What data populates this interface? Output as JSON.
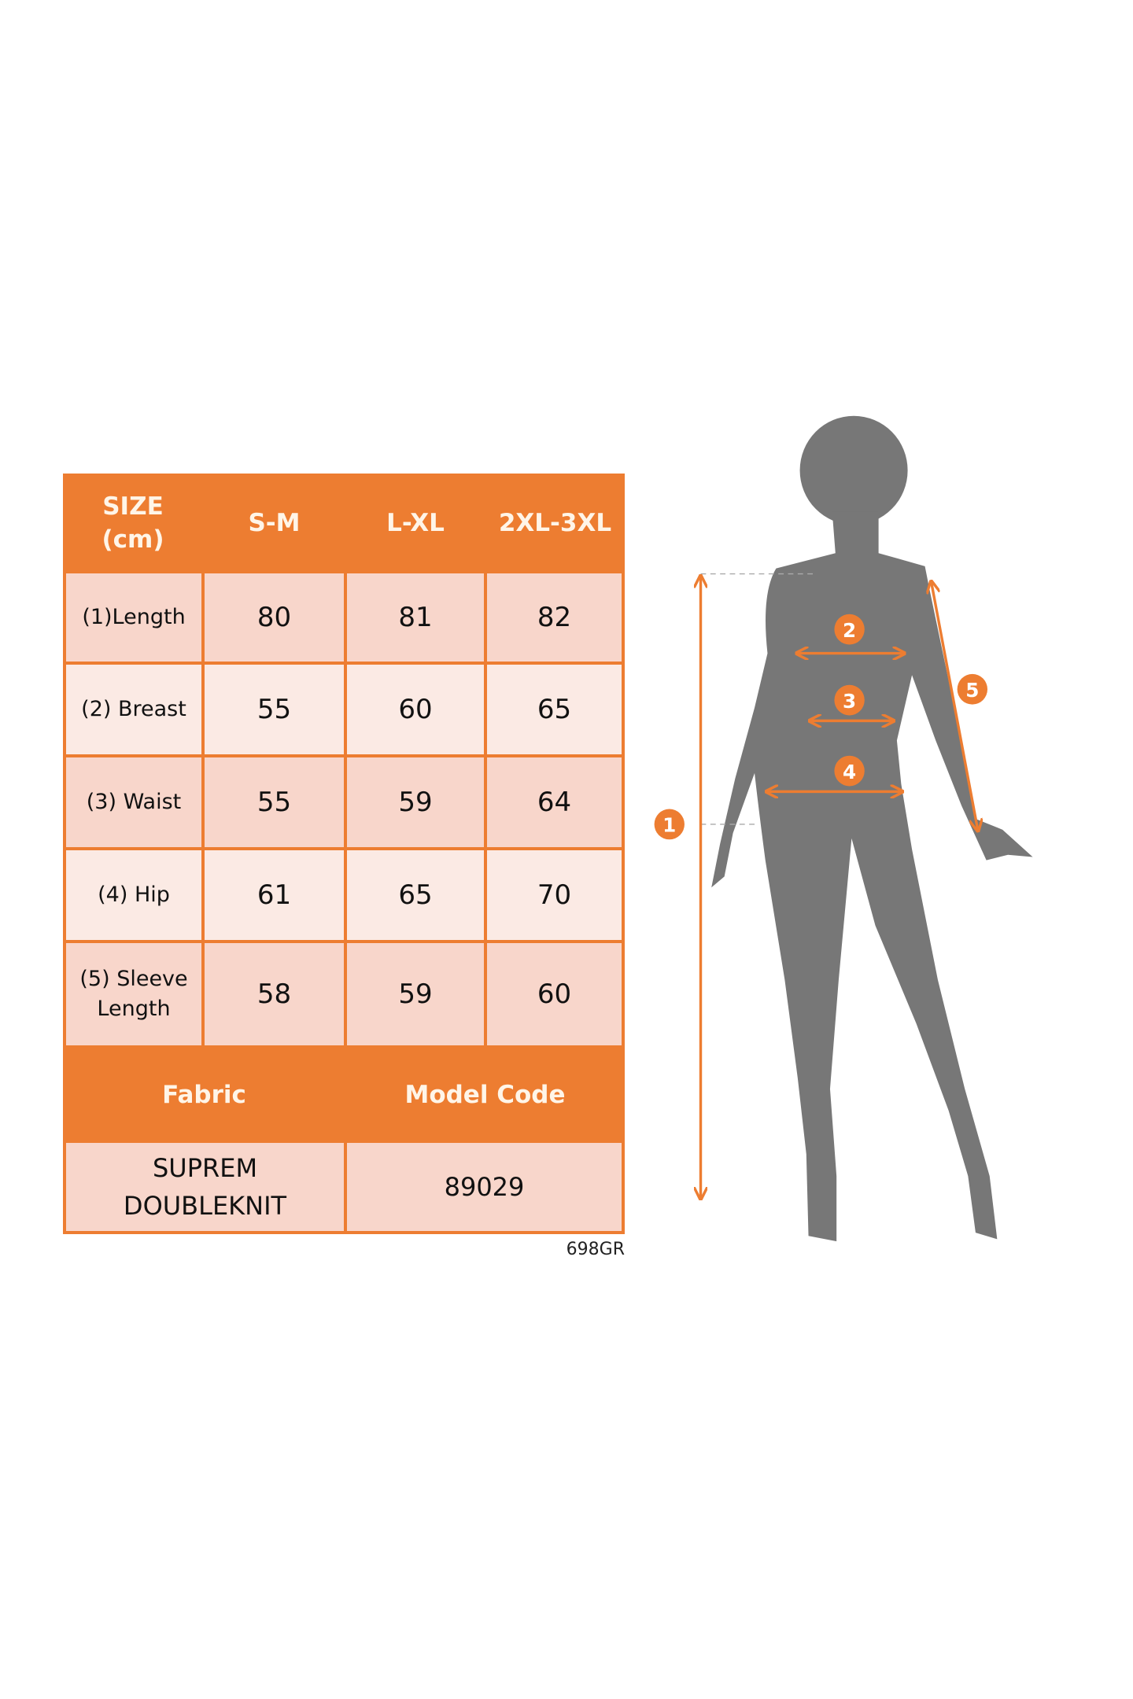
{
  "table": {
    "header": [
      "SIZE\n(cm)",
      "S-M",
      "L-XL",
      "2XL-3XL"
    ],
    "header_size_line1": "SIZE",
    "header_size_line2": "(cm)",
    "rows": [
      {
        "label": "(1)Length",
        "values": [
          "80",
          "81",
          "82"
        ]
      },
      {
        "label": "(2) Breast",
        "values": [
          "55",
          "60",
          "65"
        ]
      },
      {
        "label": "(3) Waist",
        "values": [
          "55",
          "59",
          "64"
        ]
      },
      {
        "label": "(4) Hip",
        "values": [
          "61",
          "65",
          "70"
        ]
      },
      {
        "label_line1": "(5) Sleeve",
        "label_line2": "Length",
        "values": [
          "58",
          "59",
          "60"
        ]
      }
    ],
    "footer_headers": [
      "Fabric",
      "Model Code"
    ],
    "fabric_line1": "SUPREM",
    "fabric_line2": "DOUBLEKNIT",
    "model_code": "89029"
  },
  "product_code": "698GR",
  "figure": {
    "markers": [
      "1",
      "2",
      "3",
      "4",
      "5"
    ]
  },
  "colors": {
    "accent": "#ed7d31",
    "row_dark": "#f8d6cb",
    "row_light": "#fbeae4",
    "silhouette": "#777777"
  }
}
